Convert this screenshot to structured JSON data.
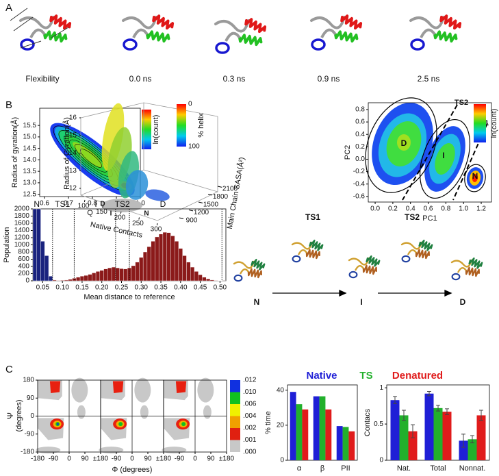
{
  "panel_labels": [
    "A",
    "B",
    "C"
  ],
  "snapshots": [
    "Flexibility",
    "0.0 ns",
    "0.3 ns",
    "0.9 ns",
    "2.5 ns"
  ],
  "pathway": {
    "states": [
      "N",
      "I",
      "D"
    ],
    "transitions": [
      "TS1",
      "TS2"
    ]
  },
  "chart_data": [
    {
      "type": "contour",
      "xlabel": "Q",
      "ylabel": "Radius of gyration(Å)",
      "colorbar_label": "ln(count)",
      "xlim": [
        0.58,
        1.0
      ],
      "xticks": [
        0.6,
        0.7,
        0.8,
        0.9,
        {
          "value": 1,
          "label": "1.0"
        }
      ],
      "ylim": [
        12.4,
        16.25
      ],
      "yticks": [
        12.5,
        {
          "value": 13,
          "label": "13.0"
        },
        13.5,
        {
          "value": 14,
          "label": "14.0"
        },
        14.5,
        {
          "value": 15,
          "label": "15.0"
        },
        15.5
      ]
    },
    {
      "type": "scatter3d",
      "xlabel": "Native Contacts",
      "ylabel": "Radius of Gyration(Å)",
      "zlabel": "Main Chain SASA(Å²)",
      "colorbar_label": "% helix",
      "xlim": [
        100,
        300
      ],
      "xticks": [
        100,
        150,
        200,
        250,
        300
      ],
      "ylim": [
        12,
        16
      ],
      "yticks": [
        12,
        13,
        14,
        15,
        16
      ],
      "zlim": [
        900,
        2100
      ],
      "zticks": [
        900,
        1200,
        1500,
        1800,
        2100
      ],
      "colorbar_lim": [
        0,
        100
      ],
      "colorbar_ticks": [
        0,
        100
      ],
      "annotations": [
        "D",
        "I",
        "N"
      ]
    },
    {
      "type": "contour",
      "xlabel": "PC1",
      "ylabel": "PC2",
      "colorbar_label": "ln(count)",
      "xlim": [
        -0.078,
        1.316
      ],
      "xticks": [
        {
          "value": 0,
          "label": "0.0"
        },
        0.2,
        0.4,
        0.6,
        0.8,
        {
          "value": 1,
          "label": "1.0"
        },
        1.2
      ],
      "ylim": [
        -0.69,
        0.91
      ],
      "yticks": [
        -0.6,
        -0.4,
        -0.2,
        {
          "value": 0,
          "label": "0.0"
        },
        0.2,
        0.4,
        0.6,
        0.8
      ],
      "annotations": [
        "D",
        "I",
        "N",
        "TS1",
        "TS2"
      ]
    },
    {
      "type": "histogram",
      "xlabel": "Mean distance to reference",
      "ylabel": "Population",
      "xlim": [
        0.025,
        0.515
      ],
      "xticks": [
        0.05,
        {
          "value": 0.1,
          "label": "0.10"
        },
        0.15,
        {
          "value": 0.2,
          "label": "0.20"
        },
        0.25,
        {
          "value": 0.3,
          "label": "0.30"
        },
        0.35,
        {
          "value": 0.4,
          "label": "0.40"
        },
        0.45,
        {
          "value": 0.5,
          "label": "0.50"
        }
      ],
      "ylim": [
        0,
        2000
      ],
      "yticks": [
        0,
        200,
        400,
        600,
        800,
        1000,
        1200,
        1400,
        1600,
        1800,
        2000
      ],
      "bins": [
        0.025,
        0.035,
        0.045,
        0.055,
        0.065,
        0.075,
        0.085,
        0.095,
        0.105,
        0.115,
        0.125,
        0.135,
        0.145,
        0.155,
        0.165,
        0.175,
        0.185,
        0.195,
        0.205,
        0.215,
        0.225,
        0.235,
        0.245,
        0.255,
        0.265,
        0.275,
        0.285,
        0.295,
        0.305,
        0.315,
        0.325,
        0.335,
        0.345,
        0.355,
        0.365,
        0.375,
        0.385,
        0.395,
        0.405,
        0.415,
        0.425,
        0.435,
        0.445,
        0.455,
        0.465,
        0.475,
        0.485,
        0.495,
        0.505,
        0.515
      ],
      "values": [
        2000,
        2000,
        1100,
        700,
        130,
        20,
        10,
        15,
        20,
        40,
        70,
        100,
        130,
        150,
        180,
        220,
        260,
        290,
        330,
        360,
        380,
        360,
        340,
        330,
        360,
        420,
        520,
        650,
        800,
        950,
        1100,
        1220,
        1300,
        1350,
        1340,
        1250,
        1100,
        900,
        700,
        520,
        380,
        260,
        170,
        100,
        55,
        25,
        10,
        5,
        2
      ],
      "colors": [
        "#1a237e",
        "#1a237e",
        "#1a237e",
        "#1a237e",
        "#1a237e",
        "#8b1a1a",
        "#8b1a1a",
        "#8b1a1a",
        "#8b1a1a",
        "#8b1a1a",
        "#8b1a1a",
        "#8b1a1a",
        "#8b1a1a",
        "#8b1a1a",
        "#8b1a1a",
        "#8b1a1a",
        "#8b1a1a",
        "#8b1a1a",
        "#8b1a1a",
        "#8b1a1a",
        "#8b1a1a",
        "#8b1a1a",
        "#8b1a1a",
        "#8b1a1a",
        "#8b1a1a",
        "#8b1a1a",
        "#8b1a1a",
        "#8b1a1a",
        "#8b1a1a",
        "#8b1a1a",
        "#8b1a1a",
        "#8b1a1a",
        "#8b1a1a",
        "#8b1a1a",
        "#8b1a1a",
        "#8b1a1a",
        "#8b1a1a",
        "#8b1a1a",
        "#8b1a1a",
        "#8b1a1a",
        "#8b1a1a",
        "#8b1a1a",
        "#8b1a1a",
        "#8b1a1a",
        "#8b1a1a",
        "#8b1a1a",
        "#8b1a1a",
        "#8b1a1a",
        "#8b1a1a"
      ],
      "boundaries": [
        0.075,
        0.13,
        0.235,
        0.27,
        0.505
      ],
      "regions": [
        {
          "label": "N",
          "x": 0.035
        },
        {
          "label": "TS1",
          "x": 0.1
        },
        {
          "label": "I",
          "x": 0.185
        },
        {
          "label": "TS2",
          "x": 0.252
        },
        {
          "label": "D",
          "x": 0.355
        }
      ]
    },
    {
      "type": "heatmap",
      "xlabel": "Φ (degrees)",
      "ylabel": [
        "Ψ",
        "(degrees)"
      ],
      "xlim": [
        -180,
        180
      ],
      "xticks": [
        -180,
        -90,
        0,
        90,
        {
          "value": 180,
          "label": "±180"
        }
      ],
      "ylim": [
        -180,
        180
      ],
      "yticks": [
        -180,
        -90,
        0,
        90,
        180
      ],
      "colorbar": {
        "ticks": [
          {
            "value": 0.012,
            "label": ".012"
          },
          {
            "value": 0.01,
            "label": ".010"
          },
          {
            "value": 0.006,
            "label": ".006"
          },
          {
            "value": 0.004,
            "label": ".004"
          },
          {
            "value": 0.002,
            "label": ".002"
          },
          {
            "value": 0.001,
            "label": ".001"
          },
          {
            "value": 0,
            "label": ".000"
          }
        ],
        "colors": [
          "#1030e0",
          "#10c020",
          "#f0f000",
          "#f0a000",
          "#e02010",
          "#c8c8c8"
        ]
      }
    },
    {
      "type": "heatmap",
      "xlim": [
        -180,
        180
      ],
      "xticks": [
        -90,
        0,
        90,
        {
          "value": 180,
          "label": "±180"
        }
      ]
    },
    {
      "type": "heatmap",
      "xlim": [
        -180,
        180
      ],
      "xticks": [
        -90,
        0,
        90,
        {
          "value": 180,
          "label": "±180"
        }
      ]
    },
    {
      "type": "bar",
      "ylabel": "% time",
      "categories": [
        "α",
        "β",
        "PII"
      ],
      "ylim": [
        0,
        43
      ],
      "yticks": [
        0,
        20,
        40
      ],
      "series": [
        {
          "name": "Native",
          "color": "#1f1fd6",
          "values": [
            39,
            36.5,
            19.5
          ]
        },
        {
          "name": "TS",
          "color": "#22b02c",
          "values": [
            32,
            36.5,
            19
          ]
        },
        {
          "name": "Denatured",
          "color": "#e01b1b",
          "values": [
            29,
            29,
            16.5
          ]
        }
      ]
    },
    {
      "type": "bar",
      "ylabel": "Contacs",
      "categories": [
        "Nat.",
        "Total",
        "Nonnat."
      ],
      "ylim": [
        0,
        1.04
      ],
      "yticks": [
        0,
        0.5,
        1
      ],
      "series": [
        {
          "color": "#1f1fd6",
          "values": [
            0.83,
            0.92,
            0.27
          ],
          "errors": [
            0.05,
            0.03,
            0.09
          ]
        },
        {
          "color": "#22b02c",
          "values": [
            0.62,
            0.72,
            0.29
          ],
          "errors": [
            0.07,
            0.04,
            0.05
          ]
        },
        {
          "color": "#e01b1b",
          "values": [
            0.4,
            0.67,
            0.62
          ],
          "errors": [
            0.09,
            0.04,
            0.07
          ]
        }
      ]
    }
  ]
}
